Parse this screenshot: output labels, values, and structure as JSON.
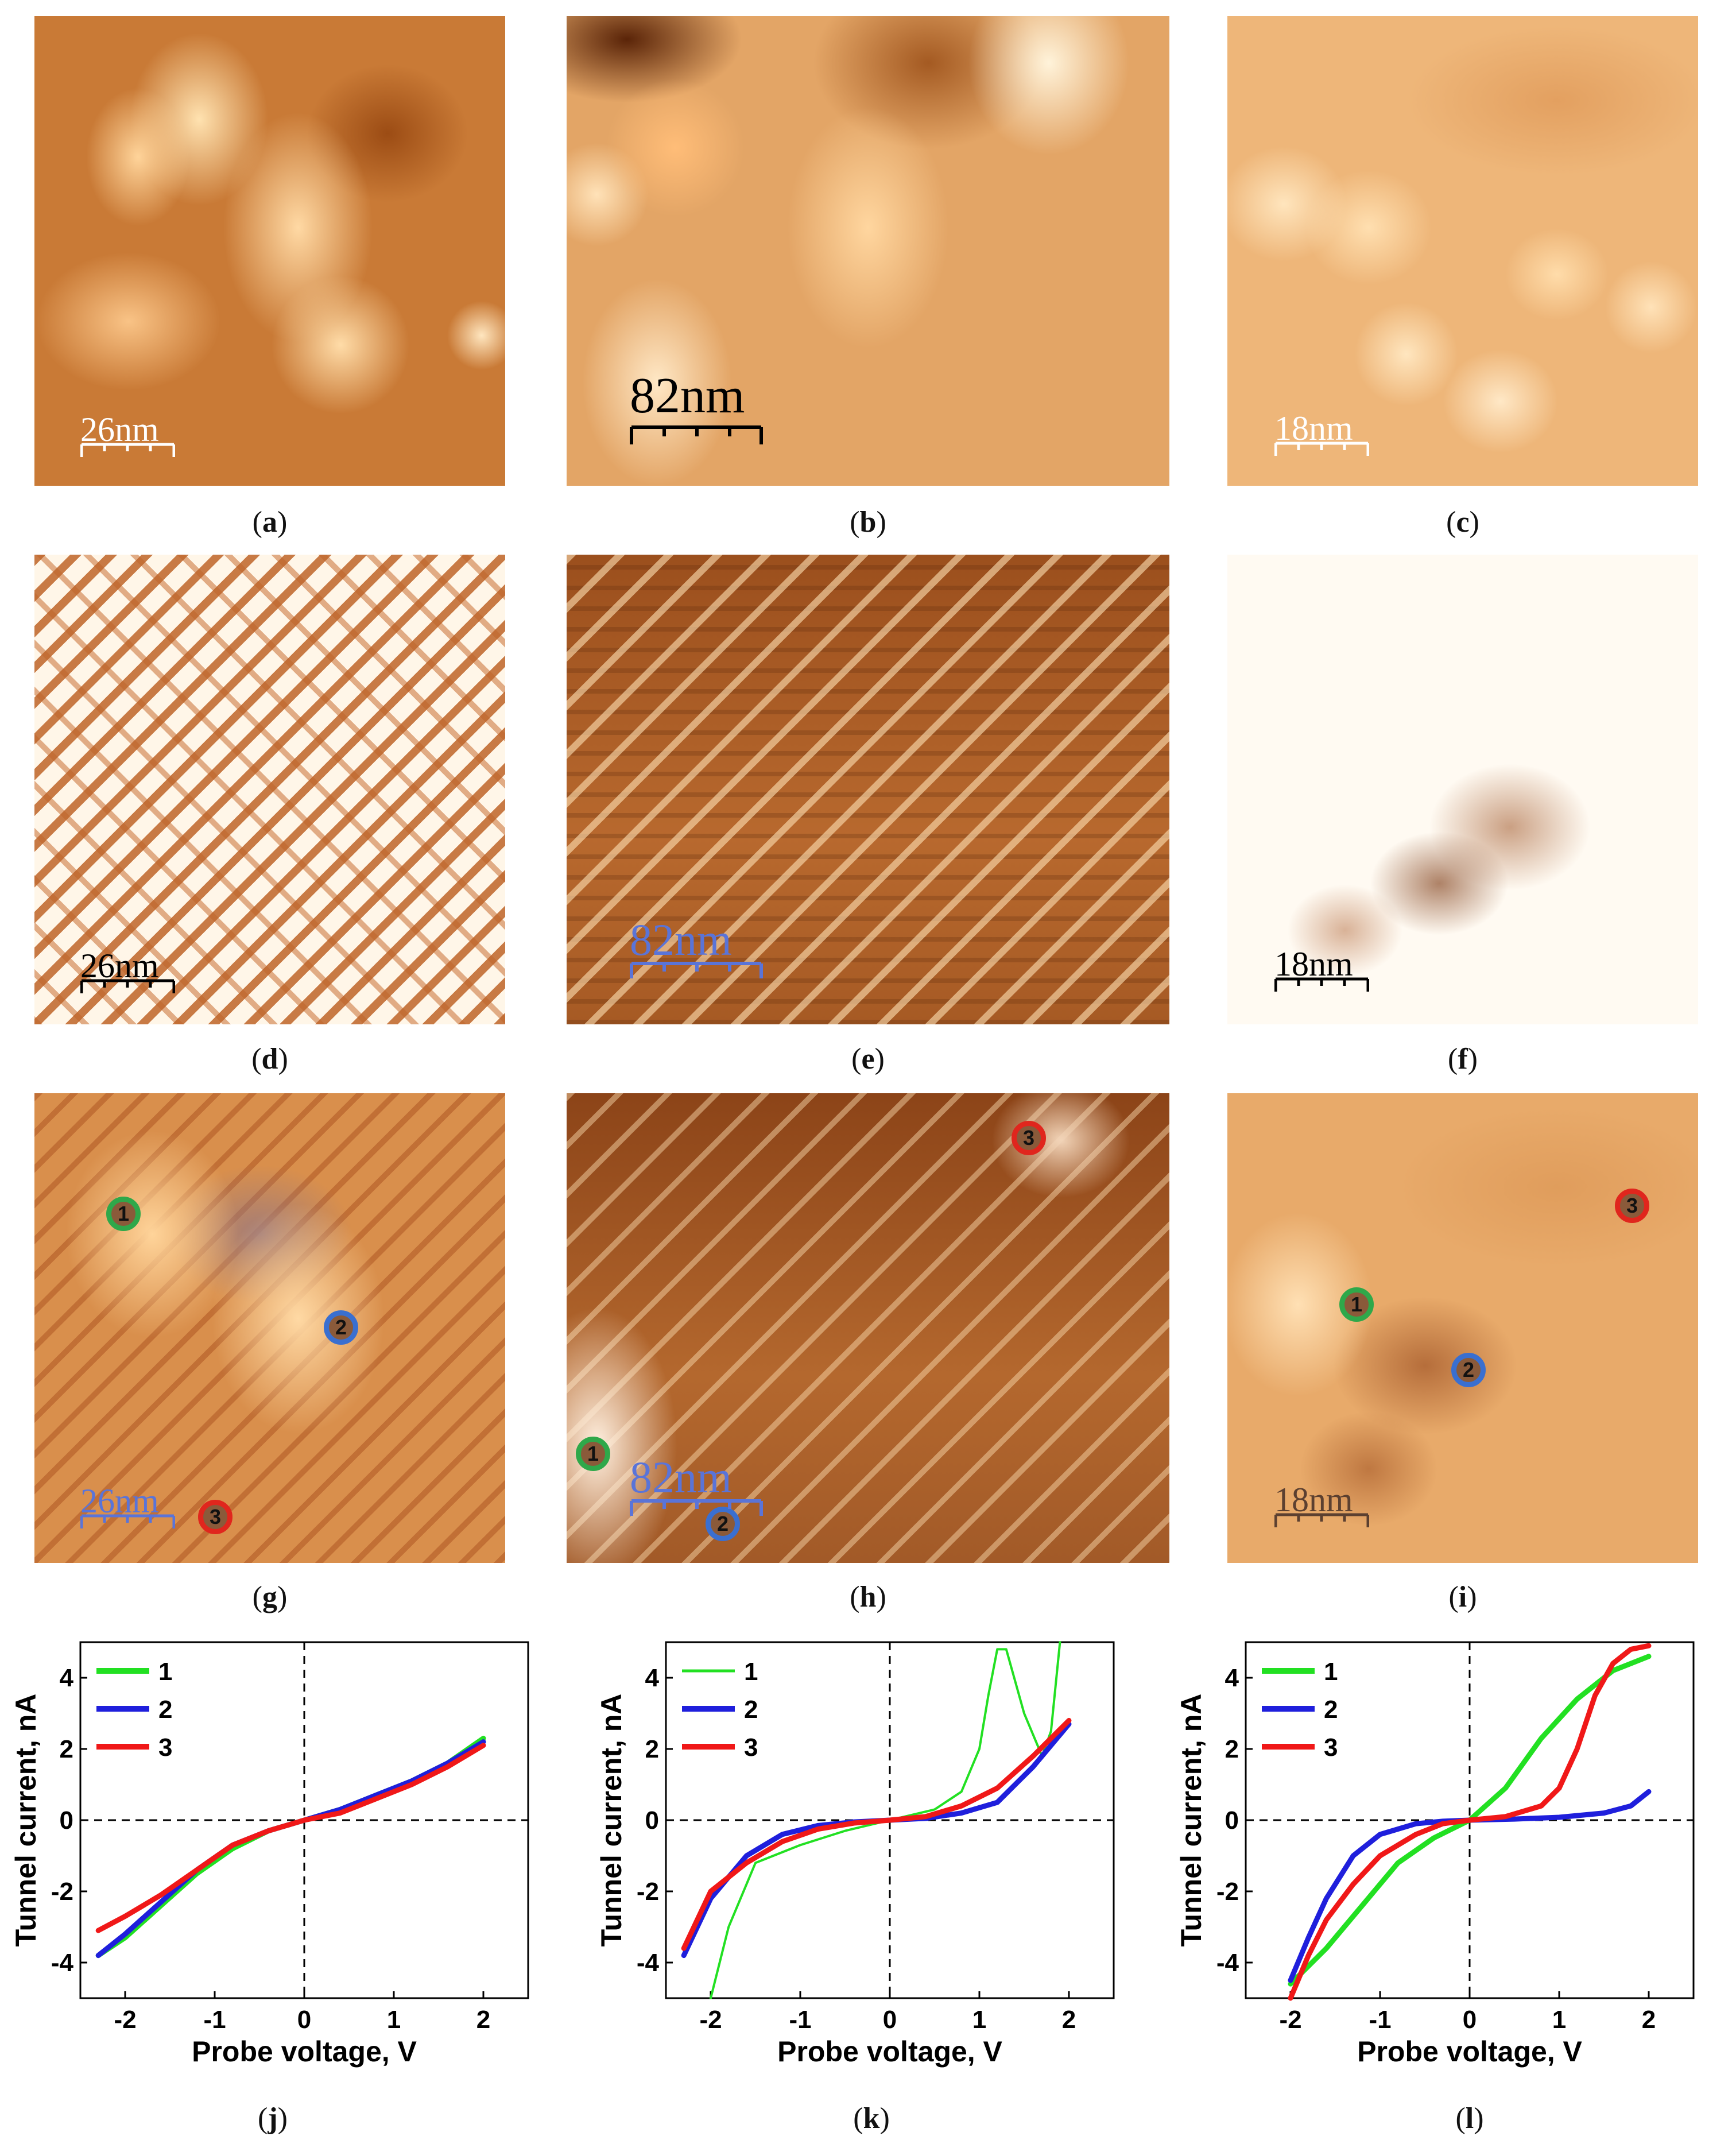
{
  "panels": [
    {
      "id": "a",
      "scalebar": "26nm"
    },
    {
      "id": "b",
      "scalebar": "82nm"
    },
    {
      "id": "c",
      "scalebar": "18nm"
    },
    {
      "id": "d",
      "scalebar": "26nm"
    },
    {
      "id": "e",
      "scalebar": "82nm"
    },
    {
      "id": "f",
      "scalebar": "18nm"
    },
    {
      "id": "g",
      "scalebar": "26nm",
      "markers": [
        "1",
        "2",
        "3"
      ]
    },
    {
      "id": "h",
      "scalebar": "82nm",
      "markers": [
        "1",
        "2",
        "3"
      ]
    },
    {
      "id": "i",
      "scalebar": "18nm",
      "markers": [
        "1",
        "2",
        "3"
      ]
    }
  ],
  "plot_captions": {
    "j": "j",
    "k": "k",
    "l": "l"
  },
  "colors": {
    "series_1": "#22e022",
    "series_2": "#1f1fdc",
    "series_3": "#f01818"
  },
  "chart_data": [
    {
      "type": "line",
      "panel": "j",
      "xlabel": "Probe voltage, V",
      "ylabel": "Tunnel current, nA",
      "xlim": [
        -2.5,
        2.5
      ],
      "ylim": [
        -5,
        5
      ],
      "xticks": [
        -2,
        -1,
        0,
        1,
        2
      ],
      "yticks": [
        -4,
        -2,
        0,
        2,
        4
      ],
      "legend_position": "top-left",
      "series": [
        {
          "name": "1",
          "color": "#22e022",
          "x": [
            -2.3,
            -2.0,
            -1.6,
            -1.2,
            -0.8,
            -0.4,
            0,
            0.4,
            0.8,
            1.2,
            1.6,
            2.0
          ],
          "y": [
            -3.8,
            -3.3,
            -2.4,
            -1.5,
            -0.8,
            -0.3,
            0,
            0.3,
            0.7,
            1.1,
            1.6,
            2.3
          ]
        },
        {
          "name": "2",
          "color": "#1f1fdc",
          "x": [
            -2.3,
            -2.0,
            -1.6,
            -1.2,
            -0.8,
            -0.4,
            0,
            0.4,
            0.8,
            1.2,
            1.6,
            2.0
          ],
          "y": [
            -3.8,
            -3.2,
            -2.3,
            -1.4,
            -0.7,
            -0.3,
            0,
            0.3,
            0.7,
            1.1,
            1.6,
            2.2
          ]
        },
        {
          "name": "3",
          "color": "#f01818",
          "x": [
            -2.3,
            -2.0,
            -1.6,
            -1.2,
            -0.8,
            -0.4,
            0,
            0.4,
            0.8,
            1.2,
            1.6,
            2.0
          ],
          "y": [
            -3.1,
            -2.7,
            -2.1,
            -1.4,
            -0.7,
            -0.3,
            0,
            0.2,
            0.6,
            1.0,
            1.5,
            2.1
          ]
        }
      ]
    },
    {
      "type": "line",
      "panel": "k",
      "xlabel": "Probe voltage, V",
      "ylabel": "Tunnel current, nA",
      "xlim": [
        -2.5,
        2.5
      ],
      "ylim": [
        -5,
        5
      ],
      "xticks": [
        -2,
        -1,
        0,
        1,
        2
      ],
      "yticks": [
        -4,
        -2,
        0,
        2,
        4
      ],
      "legend_position": "top-left",
      "series": [
        {
          "name": "1",
          "color": "#22e022",
          "x": [
            -2.0,
            -1.9,
            -1.8,
            -1.5,
            -1.0,
            -0.5,
            0,
            0.5,
            0.8,
            1.0,
            1.1,
            1.2,
            1.3,
            1.5,
            1.7,
            1.8,
            1.9
          ],
          "y": [
            -5.0,
            -4.0,
            -3.0,
            -1.2,
            -0.7,
            -0.3,
            0,
            0.3,
            0.8,
            2.0,
            3.5,
            4.8,
            4.8,
            3.0,
            1.8,
            2.5,
            5.0
          ]
        },
        {
          "name": "2",
          "color": "#1f1fdc",
          "x": [
            -2.3,
            -2.0,
            -1.6,
            -1.2,
            -0.8,
            -0.4,
            0,
            0.4,
            0.8,
            1.2,
            1.6,
            2.0
          ],
          "y": [
            -3.8,
            -2.2,
            -1.0,
            -0.4,
            -0.15,
            -0.05,
            0,
            0.05,
            0.2,
            0.5,
            1.5,
            2.7
          ]
        },
        {
          "name": "3",
          "color": "#f01818",
          "x": [
            -2.3,
            -2.0,
            -1.6,
            -1.2,
            -0.8,
            -0.4,
            0,
            0.4,
            0.8,
            1.2,
            1.6,
            2.0
          ],
          "y": [
            -3.6,
            -2.0,
            -1.2,
            -0.6,
            -0.25,
            -0.08,
            0,
            0.1,
            0.4,
            0.9,
            1.8,
            2.8
          ]
        }
      ]
    },
    {
      "type": "line",
      "panel": "l",
      "xlabel": "Probe voltage, V",
      "ylabel": "Tunnel current, nA",
      "xlim": [
        -2.5,
        2.5
      ],
      "ylim": [
        -5,
        5
      ],
      "xticks": [
        -2,
        -1,
        0,
        1,
        2
      ],
      "yticks": [
        -4,
        -2,
        0,
        2,
        4
      ],
      "legend_position": "top-left",
      "series": [
        {
          "name": "1",
          "color": "#22e022",
          "x": [
            -2.0,
            -1.6,
            -1.2,
            -0.8,
            -0.4,
            0,
            0.4,
            0.8,
            1.2,
            1.6,
            2.0
          ],
          "y": [
            -4.6,
            -3.6,
            -2.4,
            -1.2,
            -0.5,
            0,
            0.9,
            2.3,
            3.4,
            4.2,
            4.6
          ]
        },
        {
          "name": "2",
          "color": "#1f1fdc",
          "x": [
            -2.0,
            -1.8,
            -1.6,
            -1.3,
            -1.0,
            -0.6,
            -0.3,
            0,
            0.5,
            1.0,
            1.5,
            1.8,
            2.0
          ],
          "y": [
            -4.5,
            -3.3,
            -2.2,
            -1.0,
            -0.4,
            -0.1,
            -0.03,
            0,
            0.03,
            0.08,
            0.2,
            0.4,
            0.8
          ]
        },
        {
          "name": "3",
          "color": "#f01818",
          "x": [
            -2.0,
            -1.8,
            -1.6,
            -1.3,
            -1.0,
            -0.6,
            -0.3,
            0,
            0.4,
            0.8,
            1.0,
            1.2,
            1.4,
            1.6,
            1.8,
            2.0
          ],
          "y": [
            -5.0,
            -3.8,
            -2.8,
            -1.8,
            -1.0,
            -0.4,
            -0.1,
            0,
            0.1,
            0.4,
            0.9,
            2.0,
            3.5,
            4.4,
            4.8,
            4.9
          ]
        }
      ]
    }
  ]
}
